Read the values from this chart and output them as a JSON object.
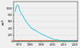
{
  "title": "",
  "ylabel": "µg/L",
  "xlim": [
    1966,
    2022
  ],
  "ylim": [
    0,
    1200
  ],
  "red_threshold": 50,
  "green_threshold": 10,
  "red_color": "#ff4444",
  "green_color": "#44aa44",
  "line_color": "#00bbee",
  "yticks": [
    0,
    200,
    400,
    600,
    800,
    1000
  ],
  "xtick_years": [
    1970,
    1980,
    1990,
    2000,
    2010,
    2020
  ],
  "years": [
    1967,
    1968,
    1969,
    1970,
    1971,
    1972,
    1973,
    1974,
    1975,
    1976,
    1977,
    1978,
    1979,
    1980,
    1981,
    1982,
    1983,
    1984,
    1985,
    1986,
    1987,
    1988,
    1989,
    1990,
    1991,
    1992,
    1993,
    1994,
    1995,
    1996,
    1997,
    1998,
    1999,
    2000,
    2001,
    2002,
    2003,
    2004,
    2005,
    2006,
    2007,
    2008,
    2009,
    2010,
    2011,
    2012,
    2013,
    2014,
    2015,
    2016,
    2017,
    2018,
    2019,
    2020,
    2021
  ],
  "values": [
    900,
    1050,
    1100,
    1080,
    950,
    870,
    820,
    760,
    700,
    640,
    590,
    540,
    500,
    460,
    420,
    390,
    370,
    350,
    330,
    310,
    290,
    270,
    250,
    230,
    210,
    195,
    180,
    165,
    150,
    135,
    120,
    105,
    92,
    80,
    70,
    62,
    55,
    50,
    45,
    40,
    36,
    33,
    30,
    28,
    26,
    25,
    24,
    23,
    22,
    22,
    21,
    23,
    22,
    24,
    23
  ]
}
